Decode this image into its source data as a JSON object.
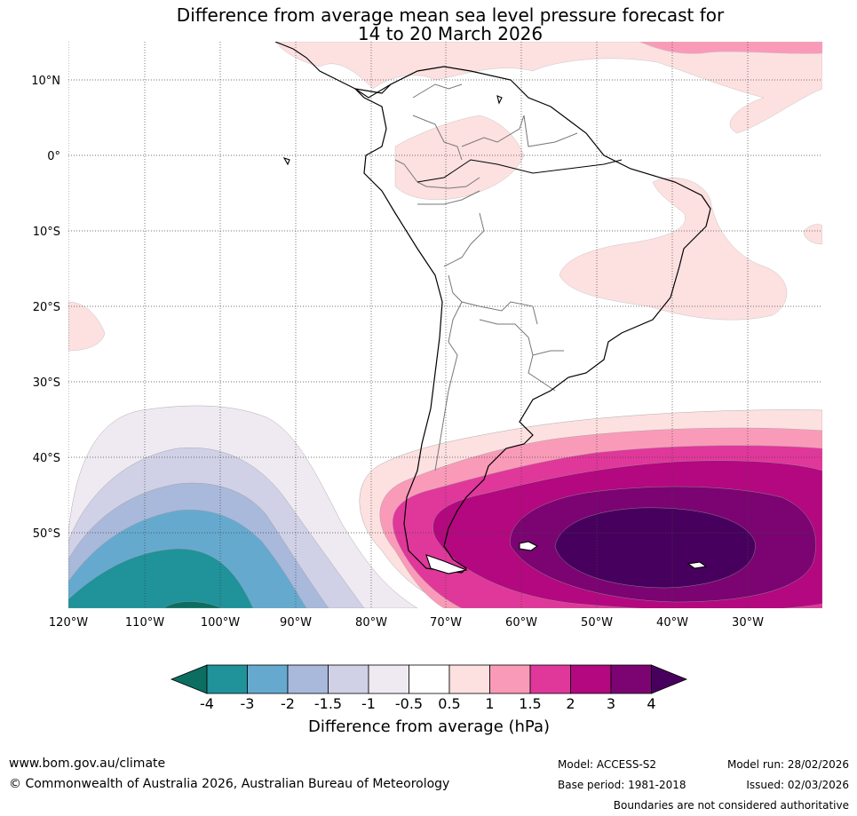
{
  "title": {
    "line1": "Difference from average mean sea level pressure forecast for",
    "line2": "14 to 20 March 2026"
  },
  "map": {
    "region": "South America",
    "longitude_labels": [
      "120°W",
      "110°W",
      "100°W",
      "90°W",
      "80°W",
      "70°W",
      "60°W",
      "50°W",
      "40°W",
      "30°W"
    ],
    "latitude_labels": [
      "10°N",
      "0°",
      "10°S",
      "20°S",
      "30°S",
      "40°S",
      "50°S"
    ],
    "extent": {
      "lon": [
        -120,
        -20
      ],
      "lat": [
        -60,
        15
      ]
    }
  },
  "colorbar": {
    "title": "Difference from average (hPa)",
    "ticks": [
      "-4",
      "-3",
      "-2",
      "-1.5",
      "-1",
      "-0.5",
      "0.5",
      "1",
      "1.5",
      "2",
      "3",
      "4"
    ],
    "colors": {
      "below_-4": "#0b6e60",
      "-4_-3": "#1f929a",
      "-3_-2": "#66a9cf",
      "-2_-1.5": "#a8b9db",
      "-1.5_-1": "#d0d1e6",
      "-1_-0.5": "#efeaf2",
      "-0.5_0.5": "#ffffff",
      "0.5_1": "#fde0e0",
      "1_1.5": "#f99bb8",
      "1.5_2": "#e0379a",
      "2_3": "#b3087f",
      "3_4": "#7b0472",
      "above_4": "#48005e"
    }
  },
  "footer": {
    "website": "www.bom.gov.au/climate",
    "copyright": "© Commonwealth of Australia 2026, Australian Bureau of Meteorology",
    "model": "Model: ACCESS-S2",
    "base_period": "Base period: 1981-2018",
    "model_run": "Model run: 28/02/2026",
    "issued": "Issued: 02/03/2026",
    "disclaimer": "Boundaries are not considered authoritative"
  }
}
